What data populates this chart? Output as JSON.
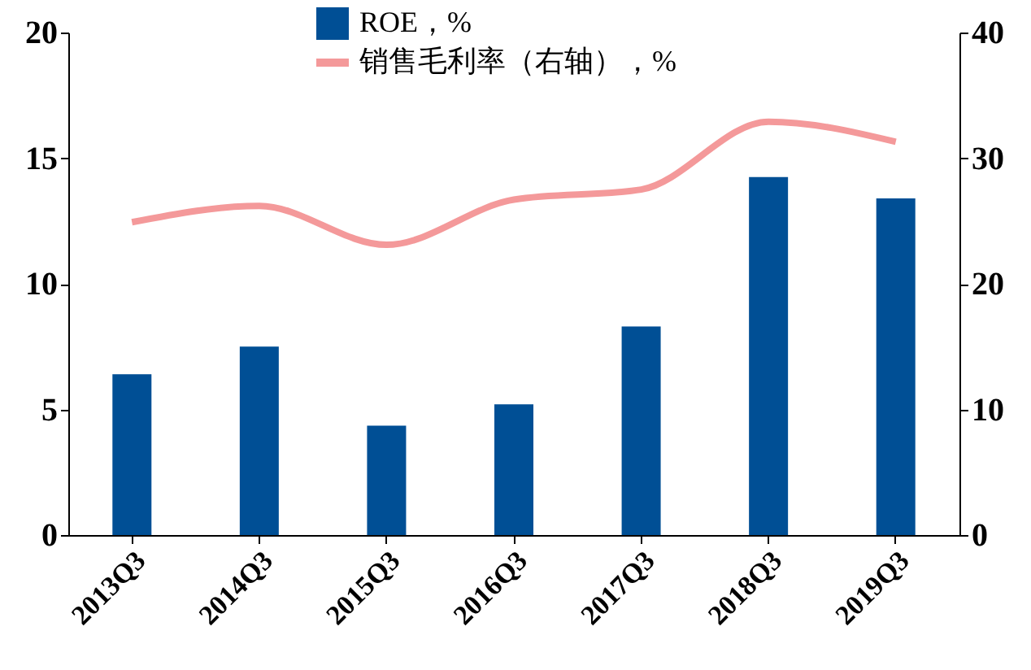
{
  "chart_data": {
    "type": "bar",
    "categories": [
      "2013Q3",
      "2014Q3",
      "2015Q3",
      "2016Q3",
      "2017Q3",
      "2018Q3",
      "2019Q3"
    ],
    "series": [
      {
        "name": "ROE，%",
        "color": "#004f95",
        "values": [
          6.4,
          7.5,
          4.35,
          5.2,
          8.3,
          14.25,
          13.4
        ]
      },
      {
        "name": "销售毛利率（右轴），%",
        "type": "line",
        "axis": "y2",
        "color": "#f4999a",
        "values": [
          24.9,
          26.2,
          23.1,
          26.7,
          27.5,
          32.9,
          31.3
        ]
      }
    ],
    "ylim": [
      0,
      20
    ],
    "yticks": [
      0,
      5,
      10,
      15,
      20
    ],
    "y2lim": [
      0,
      40
    ],
    "y2ticks": [
      0,
      10,
      20,
      30,
      40
    ],
    "grid": false,
    "legend": "top"
  }
}
